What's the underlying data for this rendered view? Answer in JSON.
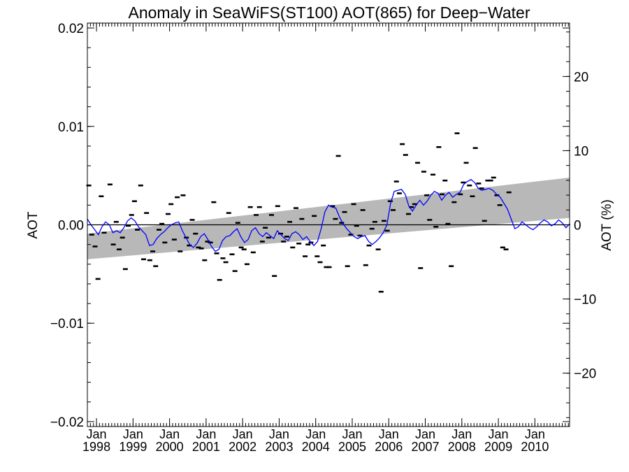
{
  "chart_data": {
    "type": "scatter",
    "title": "Anomaly in SeaWiFS(ST100) AOT(865) for Deep−Water",
    "ylabel_left": "AOT",
    "ylabel_right": "AOT (%)",
    "ylim_left": [
      -0.0205,
      0.0205
    ],
    "ylim_right": [
      -27.2,
      27.2
    ],
    "xlim": [
      1997.75,
      2010.95
    ],
    "y_ticks_left": [
      {
        "value": 0.02,
        "label": "0.02"
      },
      {
        "value": 0.01,
        "label": "0.01"
      },
      {
        "value": 0.0,
        "label": "0.00"
      },
      {
        "value": -0.01,
        "label": "−0.01"
      },
      {
        "value": -0.02,
        "label": "−0.02"
      }
    ],
    "y_ticks_right": [
      {
        "value": 20,
        "label": "20"
      },
      {
        "value": 10,
        "label": "10"
      },
      {
        "value": 0,
        "label": "0"
      },
      {
        "value": -10,
        "label": "−10"
      },
      {
        "value": -20,
        "label": "−20"
      }
    ],
    "x_ticks": [
      {
        "value": 1998,
        "month": "Jan",
        "year": "1998"
      },
      {
        "value": 1999,
        "month": "Jan",
        "year": "1999"
      },
      {
        "value": 2000,
        "month": "Jan",
        "year": "2000"
      },
      {
        "value": 2001,
        "month": "Jan",
        "year": "2001"
      },
      {
        "value": 2002,
        "month": "Jan",
        "year": "2002"
      },
      {
        "value": 2003,
        "month": "Jan",
        "year": "2003"
      },
      {
        "value": 2004,
        "month": "Jan",
        "year": "2004"
      },
      {
        "value": 2005,
        "month": "Jan",
        "year": "2005"
      },
      {
        "value": 2006,
        "month": "Jan",
        "year": "2006"
      },
      {
        "value": 2007,
        "month": "Jan",
        "year": "2007"
      },
      {
        "value": 2008,
        "month": "Jan",
        "year": "2008"
      },
      {
        "value": 2009,
        "month": "Jan",
        "year": "2009"
      },
      {
        "value": 2010,
        "month": "Jan",
        "year": "2010"
      }
    ],
    "monthly_anomaly": [
      [
        1997.79,
        0.004
      ],
      [
        1997.87,
        -0.001
      ],
      [
        1997.96,
        -0.0022
      ],
      [
        1998.04,
        -0.0055
      ],
      [
        1998.13,
        0.0029
      ],
      [
        1998.21,
        -0.0008
      ],
      [
        1998.37,
        0.0041
      ],
      [
        1998.46,
        -0.002
      ],
      [
        1998.54,
        0.0003
      ],
      [
        1998.62,
        -0.0025
      ],
      [
        1998.71,
        -0.0013
      ],
      [
        1998.79,
        -0.0045
      ],
      [
        1998.87,
        -0.0001
      ],
      [
        1998.96,
        0.001
      ],
      [
        1999.04,
        0.0024
      ],
      [
        1999.12,
        -0.0005
      ],
      [
        1999.21,
        0.004
      ],
      [
        1999.29,
        -0.0035
      ],
      [
        1999.37,
        0.0012
      ],
      [
        1999.46,
        -0.0036
      ],
      [
        1999.54,
        -0.0027
      ],
      [
        1999.62,
        -0.0042
      ],
      [
        1999.71,
        -0.0005
      ],
      [
        1999.79,
        0.0001
      ],
      [
        1999.87,
        -0.0018
      ],
      [
        1999.96,
        0.0011
      ],
      [
        2000.04,
        0.0021
      ],
      [
        2000.13,
        -0.0015
      ],
      [
        2000.21,
        0.0028
      ],
      [
        2000.29,
        -0.0027
      ],
      [
        2000.37,
        0.003
      ],
      [
        2000.46,
        -0.0013
      ],
      [
        2000.54,
        -0.0021
      ],
      [
        2000.62,
        0.0005
      ],
      [
        2000.71,
        -0.0009
      ],
      [
        2000.79,
        -0.0023
      ],
      [
        2000.87,
        -0.0024
      ],
      [
        2000.96,
        -0.0036
      ],
      [
        2001.04,
        -0.0017
      ],
      [
        2001.12,
        -0.0018
      ],
      [
        2001.21,
        0.0023
      ],
      [
        2001.29,
        -0.0029
      ],
      [
        2001.37,
        -0.0056
      ],
      [
        2001.46,
        -0.0034
      ],
      [
        2001.54,
        -0.0038
      ],
      [
        2001.62,
        0.0012
      ],
      [
        2001.71,
        -0.003
      ],
      [
        2001.79,
        -0.0047
      ],
      [
        2001.87,
        0.0002
      ],
      [
        2001.96,
        -0.0023
      ],
      [
        2002.04,
        -0.0025
      ],
      [
        2002.12,
        -0.004
      ],
      [
        2002.21,
        0.0018
      ],
      [
        2002.29,
        -0.0028
      ],
      [
        2002.37,
        0.001
      ],
      [
        2002.46,
        0.0018
      ],
      [
        2002.54,
        -0.0017
      ],
      [
        2002.62,
        -0.0003
      ],
      [
        2002.71,
        -0.0013
      ],
      [
        2002.79,
        0.001
      ],
      [
        2002.87,
        -0.0052
      ],
      [
        2002.96,
        0.0019
      ],
      [
        2003.04,
        -0.0009
      ],
      [
        2003.12,
        -0.0017
      ],
      [
        2003.21,
        -0.0012
      ],
      [
        2003.29,
        0.0003
      ],
      [
        2003.37,
        -0.0023
      ],
      [
        2003.46,
        0.0017
      ],
      [
        2003.54,
        -0.0019
      ],
      [
        2003.62,
        0.0006
      ],
      [
        2003.71,
        -0.0032
      ],
      [
        2003.79,
        -0.002
      ],
      [
        2003.87,
        -0.0018
      ],
      [
        2003.96,
        0.0009
      ],
      [
        2004.04,
        -0.0032
      ],
      [
        2004.12,
        -0.0038
      ],
      [
        2004.21,
        -0.0021
      ],
      [
        2004.29,
        -0.0043
      ],
      [
        2004.37,
        -0.0043
      ],
      [
        2004.46,
        0.0019
      ],
      [
        2004.54,
        0.0006
      ],
      [
        2004.62,
        0.007
      ],
      [
        2004.71,
        0.0002
      ],
      [
        2004.79,
        0.0013
      ],
      [
        2004.87,
        -0.0042
      ],
      [
        2004.96,
        -0.001
      ],
      [
        2005.04,
        0.0021
      ],
      [
        2005.12,
        -0.0001
      ],
      [
        2005.21,
        -0.0011
      ],
      [
        2005.29,
        0.0015
      ],
      [
        2005.37,
        -0.0041
      ],
      [
        2005.46,
        -0.0021
      ],
      [
        2005.54,
        -0.0004
      ],
      [
        2005.62,
        0.0003
      ],
      [
        2005.71,
        -0.0025
      ],
      [
        2005.79,
        -0.0068
      ],
      [
        2005.87,
        0.0004
      ],
      [
        2005.96,
        -0.0006
      ],
      [
        2006.04,
        0.0024
      ],
      [
        2006.12,
        0.0015
      ],
      [
        2006.21,
        0.0044
      ],
      [
        2006.29,
        0.0032
      ],
      [
        2006.37,
        0.0082
      ],
      [
        2006.46,
        0.0071
      ],
      [
        2006.54,
        0.0011
      ],
      [
        2006.62,
        0.0018
      ],
      [
        2006.71,
        0.0021
      ],
      [
        2006.79,
        0.0063
      ],
      [
        2006.87,
        -0.0044
      ],
      [
        2006.96,
        0.0054
      ],
      [
        2007.04,
        0.003
      ],
      [
        2007.12,
        0.0005
      ],
      [
        2007.21,
        0.0051
      ],
      [
        2007.29,
        -0.0002
      ],
      [
        2007.37,
        0.0079
      ],
      [
        2007.46,
        0.0031
      ],
      [
        2007.54,
        0.0045
      ],
      [
        2007.62,
        0.0001
      ],
      [
        2007.71,
        -0.0042
      ],
      [
        2007.79,
        0.0023
      ],
      [
        2007.87,
        0.0093
      ],
      [
        2007.96,
        0.0031
      ],
      [
        2008.04,
        0.0043
      ],
      [
        2008.12,
        0.0063
      ],
      [
        2008.21,
        0.004
      ],
      [
        2008.29,
        0.0029
      ],
      [
        2008.37,
        0.0078
      ],
      [
        2008.46,
        0.0042
      ],
      [
        2008.54,
        0.0037
      ],
      [
        2008.62,
        0.0004
      ],
      [
        2008.71,
        0.0045
      ],
      [
        2008.79,
        0.0045
      ],
      [
        2008.87,
        0.0048
      ],
      [
        2008.96,
        0.003
      ],
      [
        2009.04,
        0.002
      ],
      [
        2009.12,
        -0.0023
      ],
      [
        2009.21,
        -0.0025
      ],
      [
        2009.29,
        0.0033
      ]
    ],
    "running_mean": [
      [
        1997.75,
        0.0006
      ],
      [
        1997.85,
        0.0
      ],
      [
        1997.95,
        -0.0005
      ],
      [
        1998.05,
        -0.001
      ],
      [
        1998.15,
        -0.0002
      ],
      [
        1998.25,
        0.0003
      ],
      [
        1998.35,
        0.0
      ],
      [
        1998.45,
        -0.0008
      ],
      [
        1998.55,
        -0.0006
      ],
      [
        1998.65,
        -0.0008
      ],
      [
        1998.75,
        -0.0003
      ],
      [
        1998.85,
        0.0004
      ],
      [
        1998.95,
        0.0007
      ],
      [
        1999.05,
        0.0004
      ],
      [
        1999.15,
        -0.0002
      ],
      [
        1999.25,
        -0.0006
      ],
      [
        1999.35,
        -0.001
      ],
      [
        1999.45,
        -0.0021
      ],
      [
        1999.55,
        -0.002
      ],
      [
        1999.65,
        -0.0014
      ],
      [
        1999.75,
        -0.001
      ],
      [
        1999.85,
        -0.0007
      ],
      [
        1999.95,
        -0.0003
      ],
      [
        2000.05,
        0.0
      ],
      [
        2000.15,
        0.0002
      ],
      [
        2000.25,
        0.0003
      ],
      [
        2000.35,
        -0.0006
      ],
      [
        2000.45,
        -0.0013
      ],
      [
        2000.55,
        -0.002
      ],
      [
        2000.65,
        -0.0023
      ],
      [
        2000.75,
        -0.0019
      ],
      [
        2000.85,
        -0.0012
      ],
      [
        2000.95,
        -0.0009
      ],
      [
        2001.05,
        -0.0015
      ],
      [
        2001.15,
        -0.0022
      ],
      [
        2001.25,
        -0.0027
      ],
      [
        2001.35,
        -0.0025
      ],
      [
        2001.45,
        -0.0016
      ],
      [
        2001.55,
        -0.0012
      ],
      [
        2001.65,
        -0.0011
      ],
      [
        2001.75,
        -0.0007
      ],
      [
        2001.85,
        -0.0004
      ],
      [
        2001.95,
        -0.0012
      ],
      [
        2002.05,
        -0.0018
      ],
      [
        2002.15,
        -0.0015
      ],
      [
        2002.25,
        -0.0006
      ],
      [
        2002.35,
        -0.0003
      ],
      [
        2002.45,
        -0.0009
      ],
      [
        2002.55,
        -0.0012
      ],
      [
        2002.65,
        -0.0008
      ],
      [
        2002.75,
        -0.0011
      ],
      [
        2002.85,
        -0.0014
      ],
      [
        2002.95,
        -0.0006
      ],
      [
        2003.05,
        -0.001
      ],
      [
        2003.15,
        -0.0014
      ],
      [
        2003.25,
        -0.0016
      ],
      [
        2003.35,
        -0.0009
      ],
      [
        2003.45,
        -0.0007
      ],
      [
        2003.55,
        -0.001
      ],
      [
        2003.65,
        -0.0015
      ],
      [
        2003.75,
        -0.0012
      ],
      [
        2003.85,
        -0.0017
      ],
      [
        2003.95,
        -0.0021
      ],
      [
        2004.05,
        -0.0017
      ],
      [
        2004.15,
        -0.0004
      ],
      [
        2004.25,
        0.0013
      ],
      [
        2004.35,
        0.002
      ],
      [
        2004.45,
        0.0018
      ],
      [
        2004.55,
        0.0017
      ],
      [
        2004.65,
        0.0008
      ],
      [
        2004.75,
        0.0001
      ],
      [
        2004.85,
        -0.0004
      ],
      [
        2004.95,
        -0.0008
      ],
      [
        2005.05,
        -0.0012
      ],
      [
        2005.15,
        -0.0014
      ],
      [
        2005.25,
        -0.0012
      ],
      [
        2005.35,
        -0.0011
      ],
      [
        2005.45,
        -0.0017
      ],
      [
        2005.55,
        -0.002
      ],
      [
        2005.65,
        -0.0017
      ],
      [
        2005.75,
        -0.0013
      ],
      [
        2005.85,
        -0.0008
      ],
      [
        2005.95,
        0.0
      ],
      [
        2006.05,
        0.0022
      ],
      [
        2006.15,
        0.0034
      ],
      [
        2006.25,
        0.0035
      ],
      [
        2006.35,
        0.0036
      ],
      [
        2006.45,
        0.0031
      ],
      [
        2006.55,
        0.0019
      ],
      [
        2006.65,
        0.0014
      ],
      [
        2006.75,
        0.002
      ],
      [
        2006.85,
        0.0025
      ],
      [
        2006.95,
        0.002
      ],
      [
        2007.05,
        0.0024
      ],
      [
        2007.15,
        0.003
      ],
      [
        2007.25,
        0.0034
      ],
      [
        2007.35,
        0.0032
      ],
      [
        2007.45,
        0.0025
      ],
      [
        2007.55,
        0.003
      ],
      [
        2007.65,
        0.0033
      ],
      [
        2007.75,
        0.0028
      ],
      [
        2007.85,
        0.0031
      ],
      [
        2007.95,
        0.0033
      ],
      [
        2008.05,
        0.0041
      ],
      [
        2008.15,
        0.0044
      ],
      [
        2008.25,
        0.0046
      ],
      [
        2008.35,
        0.0043
      ],
      [
        2008.45,
        0.0037
      ],
      [
        2008.55,
        0.0035
      ],
      [
        2008.65,
        0.0036
      ],
      [
        2008.75,
        0.0037
      ],
      [
        2008.85,
        0.0035
      ],
      [
        2008.95,
        0.0031
      ],
      [
        2009.05,
        0.0028
      ],
      [
        2009.15,
        0.0022
      ],
      [
        2009.25,
        0.0016
      ],
      [
        2009.35,
        0.0006
      ],
      [
        2009.45,
        -0.0004
      ],
      [
        2009.55,
        -0.0002
      ],
      [
        2009.65,
        0.0003
      ],
      [
        2009.75,
        0.0
      ],
      [
        2009.85,
        -0.0003
      ],
      [
        2009.95,
        -0.0005
      ],
      [
        2010.05,
        -0.0002
      ],
      [
        2010.15,
        0.0002
      ],
      [
        2010.25,
        0.0005
      ],
      [
        2010.35,
        0.0003
      ],
      [
        2010.45,
        -0.0001
      ],
      [
        2010.55,
        0.0001
      ],
      [
        2010.65,
        0.0005
      ],
      [
        2010.75,
        0.0002
      ],
      [
        2010.85,
        -0.0003
      ],
      [
        2010.95,
        0.0001
      ]
    ],
    "trend_band": {
      "x_start": 1997.75,
      "x_end": 2010.95,
      "upper_start": -0.0009,
      "upper_end": 0.0048,
      "lower_start": -0.0035,
      "lower_end": 0.0007
    },
    "zero_line": 0.0,
    "colors": {
      "running_mean": "#0000ff",
      "band": "#b8b8b8",
      "points": "#000000",
      "axes": "#000000"
    },
    "grid": false
  }
}
